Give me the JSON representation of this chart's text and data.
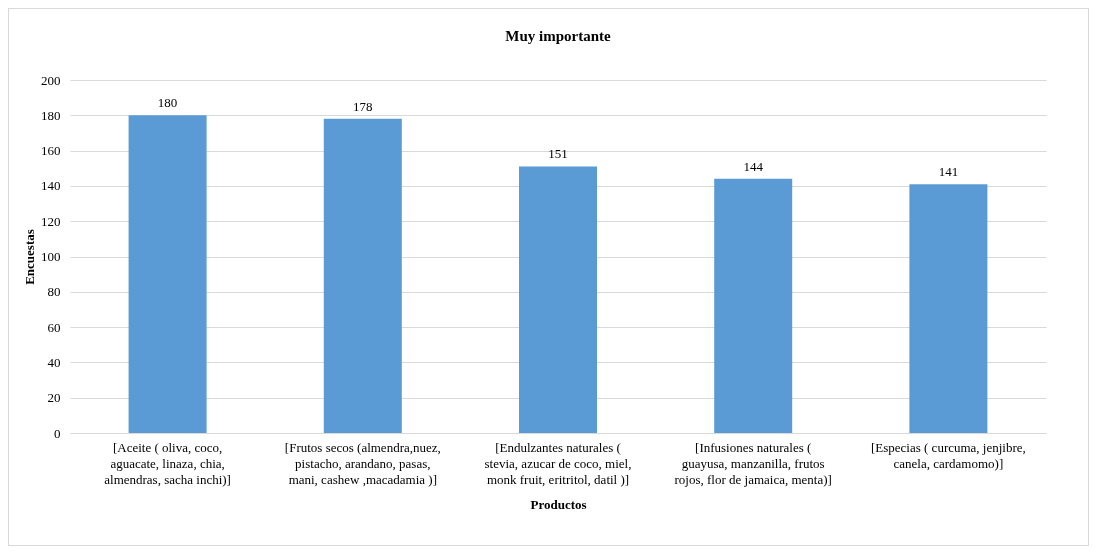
{
  "chart_data": {
    "type": "bar",
    "title": "Muy importante",
    "xlabel": "Productos",
    "ylabel": "Encuestas",
    "categories": [
      "[Aceite ( oliva, coco, aguacate, linaza, chia, almendras, sacha inchi)]",
      "[Frutos secos (almendra,nuez, pistacho,  arandano, pasas, mani, cashew ,macadamia )]",
      "[Endulzantes naturales ( stevia, azucar de coco, miel, monk fruit, eritritol, datil )]",
      "[Infusiones  naturales ( guayusa, manzanilla, frutos rojos, flor de jamaica, menta)]",
      "[Especias ( curcuma, jenjibre, canela, cardamomo)]"
    ],
    "values": [
      180,
      178,
      151,
      144,
      141
    ],
    "color": "#5b9bd5",
    "ylim": [
      0,
      200
    ],
    "yticks": [
      0,
      20,
      40,
      60,
      80,
      100,
      120,
      140,
      160,
      180,
      200
    ],
    "grid": "y",
    "data_labels": true
  }
}
